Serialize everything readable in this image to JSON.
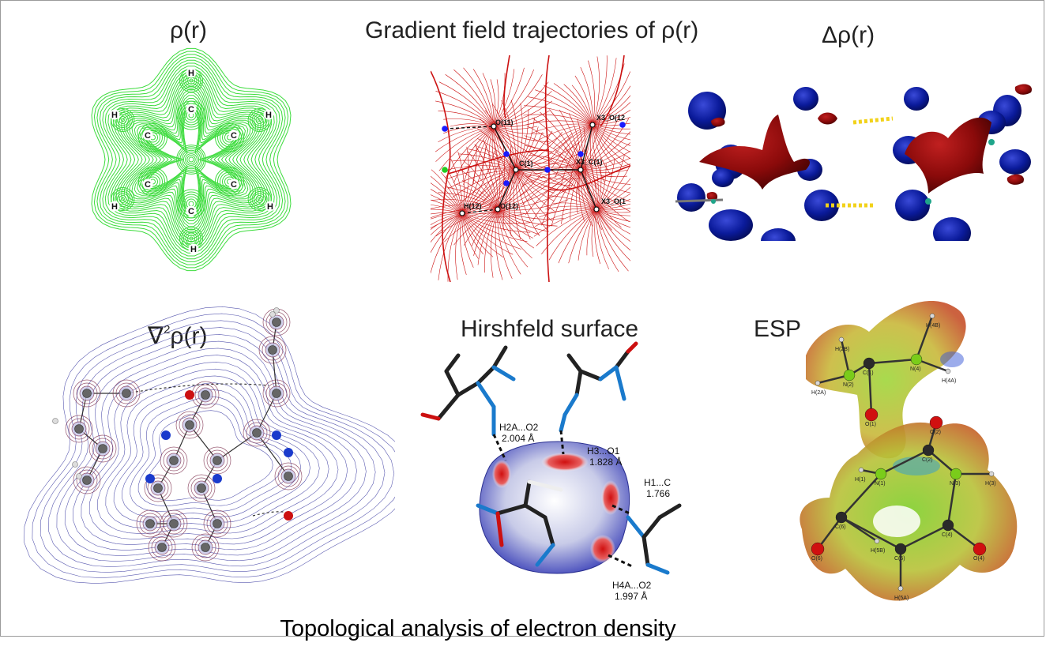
{
  "panels": {
    "rho": {
      "title": "ρ(r)",
      "atoms": [
        "H",
        "H",
        "H",
        "H",
        "H",
        "H",
        "C",
        "C",
        "C",
        "C",
        "C",
        "C"
      ]
    },
    "gradient": {
      "title": "Gradient field trajectories of ρ(r)",
      "labels": [
        "O(11)",
        "X3_O(12",
        "C(1)",
        "X3_C(1)",
        "H(12)",
        "O(12)",
        "X3_O(1"
      ]
    },
    "deformation": {
      "title": "Δρ(r)"
    },
    "laplacian": {
      "title_prefix": "∇",
      "title_sup": "2",
      "title_suffix": "ρ(r)"
    },
    "hirshfeld": {
      "title": "Hirshfeld surface",
      "contacts": [
        {
          "label": "H2A...O2",
          "dist": "2.004 Å"
        },
        {
          "label": "H3...O1",
          "dist": "1.828 Å"
        },
        {
          "label": "H1...C",
          "dist": "1.766"
        },
        {
          "label": "H4A...O2",
          "dist": "1.997 Å"
        }
      ]
    },
    "esp": {
      "title": "ESP",
      "atoms": [
        "H(4B)",
        "H(2B)",
        "C(1)",
        "N(4)",
        "H(2A)",
        "N(2)",
        "H(4A)",
        "O(1)",
        "O(2)",
        "C(2)",
        "H(1)",
        "N(1)",
        "N(3)",
        "H(3)",
        "C(6)",
        "H(5B)",
        "C(4)",
        "O(6)",
        "C(5)",
        "O(4)",
        "H(5A)"
      ]
    }
  },
  "caption": "Topological analysis of electron density",
  "colors": {
    "rho_contour": "#3ddc3d",
    "gradient_line": "#cc1111",
    "cp_blue": "#1a1aff",
    "cp_green": "#22cc22",
    "density_blue": "#0a1a9a",
    "density_red": "#8a0a0a"
  }
}
